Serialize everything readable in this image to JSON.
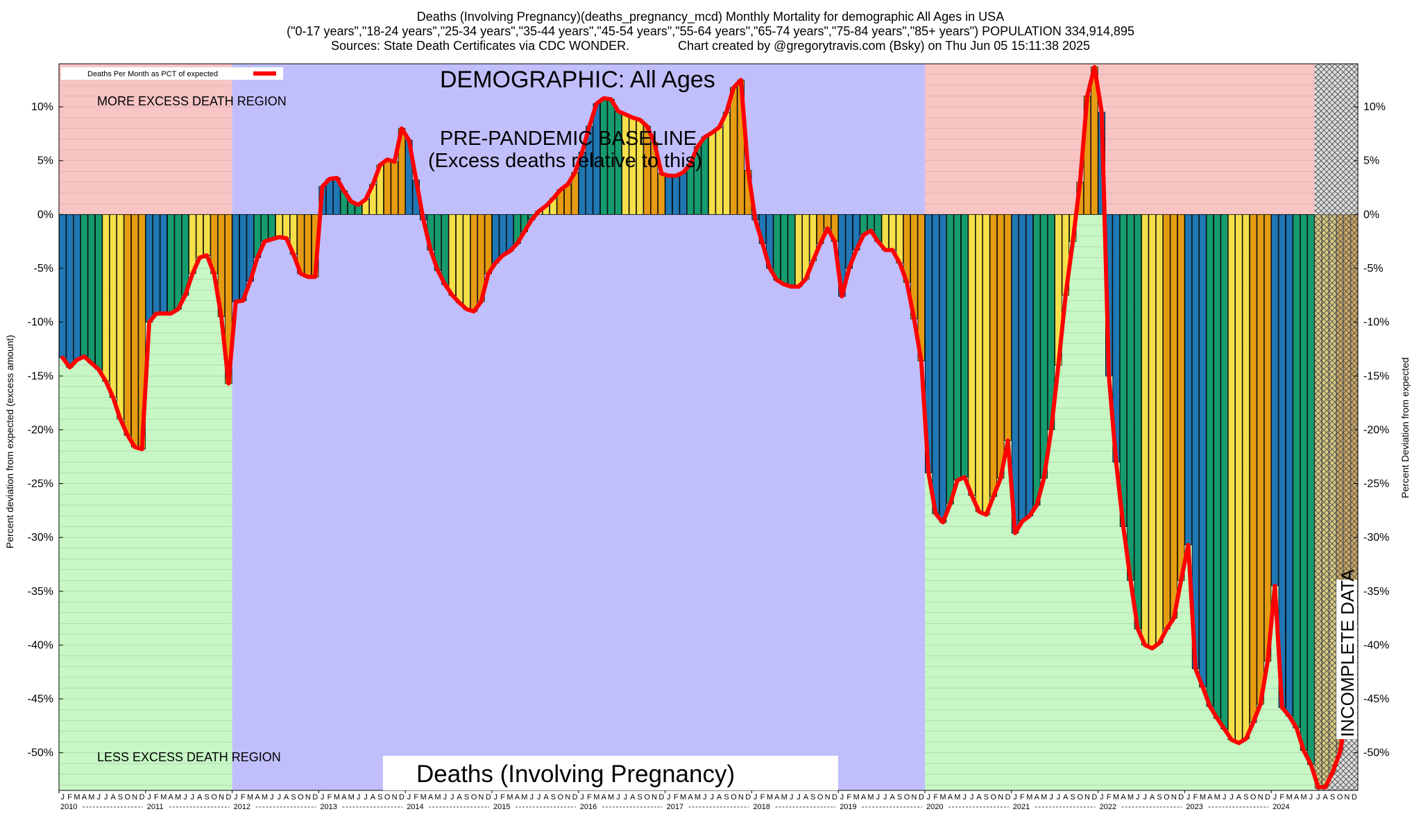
{
  "header": {
    "line1": "Deaths (Involving Pregnancy)(deaths_pregnancy_mcd) Monthly Mortality for demographic All Ages in USA",
    "line2": "(\"0-17 years\",\"18-24 years\",\"25-34 years\",\"35-44 years\",\"45-54 years\",\"55-64 years\",\"65-74 years\",\"75-84 years\",\"85+ years\") POPULATION 334,914,895",
    "line3": "Sources: State Death Certificates via CDC WONDER.              Chart created by @gregorytravis.com (Bsky) on Thu Jun 05 15:11:38 2025"
  },
  "chart_data": {
    "type": "bar",
    "title": "Deaths (Involving Pregnancy)",
    "demographic_label": "DEMOGRAPHIC: All Ages",
    "baseline_label_1": "PRE-PANDEMIC BASELINE",
    "baseline_label_2": "(Excess deaths relative to this)",
    "more_label": "MORE EXCESS DEATH REGION",
    "less_label": "LESS EXCESS DEATH REGION",
    "incomplete_label": "INCOMPLETE DATA",
    "legend_label": "Deaths Per Month as PCT of expected",
    "legend_placement": "top-left",
    "ylabel_left": "Percent deviation from expected (excess amount)",
    "ylabel_right": "Percent Deviation from expected",
    "ylim": [
      -53.5,
      14
    ],
    "y_ticks": [
      10,
      5,
      0,
      -5,
      -10,
      -15,
      -20,
      -25,
      -30,
      -35,
      -40,
      -45,
      -50
    ],
    "y_tick_labels": [
      "10%",
      "5%",
      "0%",
      "-5%",
      "-10%",
      "-15%",
      "-20%",
      "-25%",
      "-30%",
      "-35%",
      "-40%",
      "-45%",
      "-50%"
    ],
    "years": [
      "2010",
      "2011",
      "2012",
      "2013",
      "2014",
      "2015",
      "2016",
      "2017",
      "2018",
      "2019",
      "2020",
      "2021",
      "2022",
      "2023",
      "2024"
    ],
    "month_initials": [
      "J",
      "F",
      "M",
      "A",
      "M",
      "J",
      "J",
      "A",
      "S",
      "O",
      "N",
      "D"
    ],
    "start": "2010-01",
    "incomplete_from": "2024-07",
    "colors": {
      "bar_cycle": [
        "#1f77b4",
        "#169b6e",
        "#f5e04a",
        "#e59c13"
      ],
      "line": "#ff0000",
      "more_region": "#f8c4c4",
      "less_region": "#c6f7c4",
      "baseline_region": "#c0bffc",
      "incomplete": "#b9b9b9"
    },
    "bands": [
      {
        "from": "2010-01",
        "to": "2011-12",
        "kind": "outside"
      },
      {
        "from": "2012-01",
        "to": "2019-12",
        "kind": "baseline"
      },
      {
        "from": "2020-01",
        "to": "2024-06",
        "kind": "outside"
      }
    ],
    "values": [
      -13.3,
      -14.2,
      -13.5,
      -13.2,
      -13.8,
      -14.4,
      -15.5,
      -17.0,
      -19.0,
      -20.5,
      -21.6,
      -21.8,
      -10.0,
      -9.2,
      -9.2,
      -9.2,
      -8.8,
      -7.5,
      -5.5,
      -4.0,
      -3.8,
      -5.5,
      -9.5,
      -15.7,
      -8.1,
      -8.0,
      -6.2,
      -4.0,
      -2.5,
      -2.3,
      -2.1,
      -2.2,
      -3.7,
      -5.5,
      -5.8,
      -5.8,
      2.6,
      3.3,
      3.4,
      2.2,
      1.2,
      0.9,
      1.4,
      2.8,
      4.6,
      5.1,
      4.9,
      8.0,
      6.9,
      3.2,
      -0.5,
      -3.3,
      -5.2,
      -6.5,
      -7.5,
      -8.2,
      -8.8,
      -9.0,
      -8.1,
      -5.5,
      -4.5,
      -3.8,
      -3.4,
      -2.7,
      -1.6,
      -0.5,
      0.3,
      0.8,
      1.5,
      2.3,
      2.8,
      3.9,
      5.8,
      8.2,
      10.3,
      10.8,
      10.7,
      9.6,
      9.3,
      9.0,
      8.8,
      8.2,
      6.7,
      3.8,
      3.6,
      3.6,
      3.9,
      4.7,
      6.3,
      7.2,
      7.6,
      8.1,
      9.5,
      11.8,
      12.5,
      4.1,
      -0.5,
      -2.7,
      -5.0,
      -6.1,
      -6.5,
      -6.7,
      -6.7,
      -6.0,
      -4.3,
      -2.7,
      -1.3,
      -2.5,
      -7.6,
      -5.0,
      -3.3,
      -1.9,
      -1.5,
      -2.5,
      -3.3,
      -3.3,
      -4.5,
      -6.3,
      -9.7,
      -13.6,
      -24.0,
      -27.8,
      -28.6,
      -26.9,
      -24.7,
      -24.4,
      -26.1,
      -27.6,
      -27.9,
      -26.2,
      -24.5,
      -21.0,
      -29.6,
      -28.5,
      -28.0,
      -27.0,
      -24.5,
      -20.0,
      -14.0,
      -7.5,
      -2.5,
      3.0,
      11.0,
      13.7,
      9.5,
      -15.0,
      -23.0,
      -29.0,
      -34.0,
      -38.5,
      -40.0,
      -40.3,
      -39.8,
      -38.5,
      -37.5,
      -34.0,
      -30.7,
      -42.2,
      -43.9,
      -45.7,
      -46.8,
      -47.8,
      -48.8,
      -49.1,
      -48.7,
      -47.2,
      -45.5,
      -41.5,
      -34.5,
      -45.8,
      -46.6,
      -47.7,
      -49.8,
      -51.1,
      -53.2,
      -53.2,
      -51.8,
      -50.0,
      -46.4,
      -38.0
    ]
  }
}
